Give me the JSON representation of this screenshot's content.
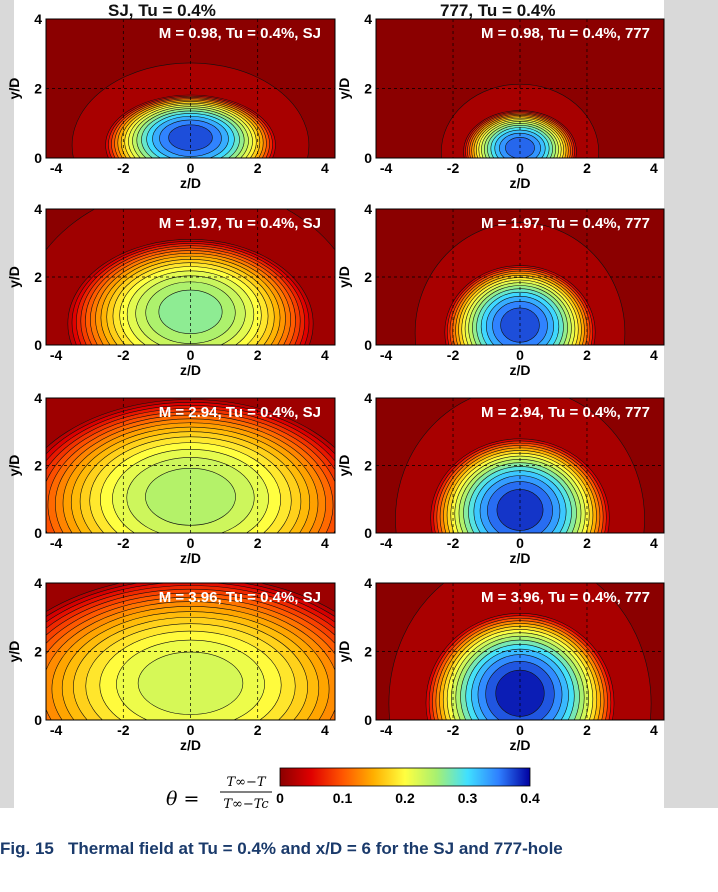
{
  "figure": {
    "column_titles": [
      "SJ, Tu = 0.4%",
      "777, Tu = 0.4%"
    ],
    "caption_label": "Fig. 15",
    "caption_text": "Thermal field at Tu = 0.4% and x/D = 6 for the SJ and 777-hole"
  },
  "colorbar": {
    "formula_lhs": "θ =",
    "formula_num": "T∞−T",
    "formula_den": "T∞−Tc",
    "ticks": [
      "0",
      "0.1",
      "0.2",
      "0.3",
      "0.4"
    ],
    "range": [
      0,
      0.4
    ],
    "colormap": [
      "#8b0000",
      "#e00000",
      "#ff5500",
      "#ffb000",
      "#ffff40",
      "#a8f070",
      "#40e0ff",
      "#2f7fff",
      "#0000a0"
    ]
  },
  "chart_data": [
    {
      "type": "heatmap",
      "title": "M = 0.98, Tu = 0.4%, SJ",
      "xlabel": "z/D",
      "ylabel": "y/D",
      "xlim": [
        -4.3,
        4.3
      ],
      "ylim": [
        0,
        4
      ],
      "xticks": [
        "-4",
        "-2",
        "0",
        "2",
        "4"
      ],
      "yticks": [
        "0",
        "2",
        "4"
      ],
      "field": {
        "peak_theta": 0.38,
        "center_z": 0.0,
        "center_y": 0.6,
        "half_width_z": 1.8,
        "half_height_y": 1.1
      }
    },
    {
      "type": "heatmap",
      "title": "M = 0.98, Tu = 0.4%, 777",
      "xlabel": "z/D",
      "ylabel": "y/D",
      "xlim": [
        -4.3,
        4.3
      ],
      "ylim": [
        0,
        4
      ],
      "xticks": [
        "-4",
        "-2",
        "0",
        "2",
        "4"
      ],
      "yticks": [
        "0",
        "2",
        "4"
      ],
      "field": {
        "peak_theta": 0.37,
        "center_z": 0.0,
        "center_y": 0.3,
        "half_width_z": 1.2,
        "half_height_y": 0.9
      }
    },
    {
      "type": "heatmap",
      "title": "M = 1.97, Tu = 0.4%, SJ",
      "xlabel": "z/D",
      "ylabel": "y/D",
      "xlim": [
        -4.3,
        4.3
      ],
      "ylim": [
        0,
        4
      ],
      "xticks": [
        "-4",
        "-2",
        "0",
        "2",
        "4"
      ],
      "yticks": [
        "0",
        "2",
        "4"
      ],
      "field": {
        "peak_theta": 0.27,
        "center_z": 0.0,
        "center_y": 1.0,
        "half_width_z": 2.6,
        "half_height_y": 1.9
      }
    },
    {
      "type": "heatmap",
      "title": "M = 1.97, Tu = 0.4%, 777",
      "xlabel": "z/D",
      "ylabel": "y/D",
      "xlim": [
        -4.3,
        4.3
      ],
      "ylim": [
        0,
        4
      ],
      "xticks": [
        "-4",
        "-2",
        "0",
        "2",
        "4"
      ],
      "yticks": [
        "0",
        "2",
        "4"
      ],
      "field": {
        "peak_theta": 0.38,
        "center_z": 0.0,
        "center_y": 0.6,
        "half_width_z": 1.6,
        "half_height_y": 1.5
      }
    },
    {
      "type": "heatmap",
      "title": "M = 2.94, Tu = 0.4%, SJ",
      "xlabel": "z/D",
      "ylabel": "y/D",
      "xlim": [
        -4.3,
        4.3
      ],
      "ylim": [
        0,
        4
      ],
      "xticks": [
        "-4",
        "-2",
        "0",
        "2",
        "4"
      ],
      "yticks": [
        "0",
        "2",
        "4"
      ],
      "field": {
        "peak_theta": 0.25,
        "center_z": 0.0,
        "center_y": 1.1,
        "half_width_z": 3.7,
        "half_height_y": 2.5
      }
    },
    {
      "type": "heatmap",
      "title": "M = 2.94, Tu = 0.4%, 777",
      "xlabel": "z/D",
      "ylabel": "y/D",
      "xlim": [
        -4.3,
        4.3
      ],
      "ylim": [
        0,
        4
      ],
      "xticks": [
        "-4",
        "-2",
        "0",
        "2",
        "4"
      ],
      "yticks": [
        "0",
        "2",
        "4"
      ],
      "field": {
        "peak_theta": 0.39,
        "center_z": 0.0,
        "center_y": 0.7,
        "half_width_z": 1.9,
        "half_height_y": 1.8
      }
    },
    {
      "type": "heatmap",
      "title": "M = 3.96, Tu = 0.4%, SJ",
      "xlabel": "z/D",
      "ylabel": "y/D",
      "xlim": [
        -4.3,
        4.3
      ],
      "ylim": [
        0,
        4
      ],
      "xticks": [
        "-4",
        "-2",
        "0",
        "2",
        "4"
      ],
      "yticks": [
        "0",
        "2",
        "4"
      ],
      "field": {
        "peak_theta": 0.23,
        "center_z": 0.0,
        "center_y": 1.1,
        "half_width_z": 4.3,
        "half_height_y": 2.7
      }
    },
    {
      "type": "heatmap",
      "title": "M = 3.96, Tu = 0.4%, 777",
      "xlabel": "z/D",
      "ylabel": "y/D",
      "xlim": [
        -4.3,
        4.3
      ],
      "ylim": [
        0,
        4
      ],
      "xticks": [
        "-4",
        "-2",
        "0",
        "2",
        "4"
      ],
      "yticks": [
        "0",
        "2",
        "4"
      ],
      "field": {
        "peak_theta": 0.4,
        "center_z": 0.0,
        "center_y": 0.8,
        "half_width_z": 2.0,
        "half_height_y": 2.0
      }
    }
  ]
}
